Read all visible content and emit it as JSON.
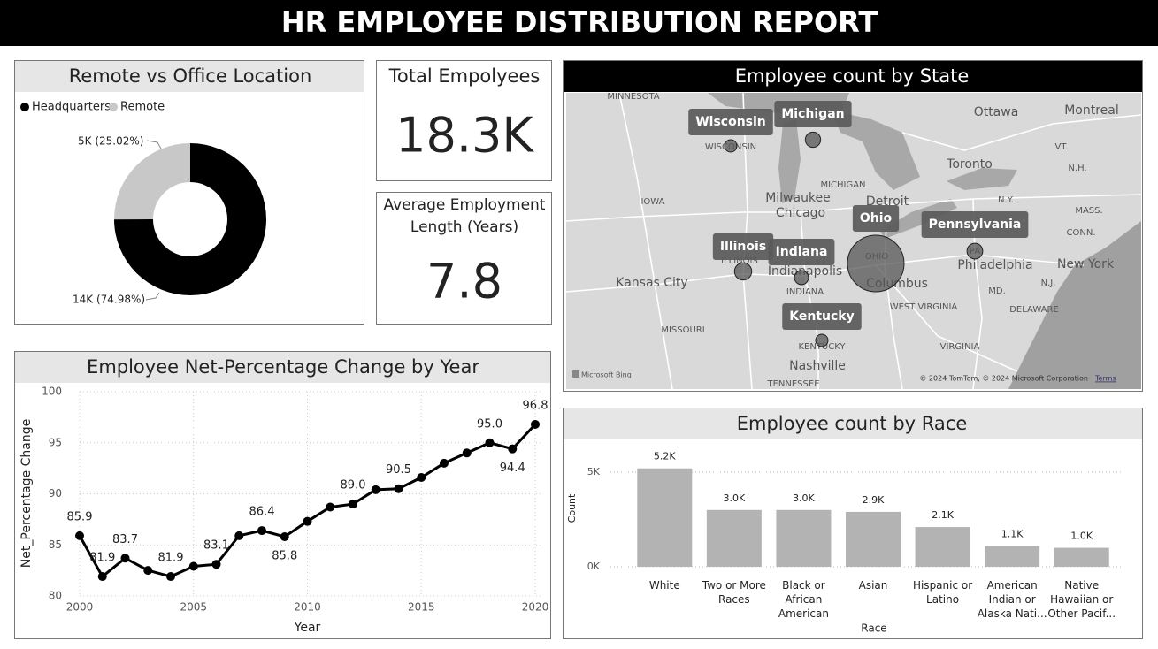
{
  "header": {
    "title": "HR EMPLOYEE DISTRIBUTION REPORT"
  },
  "cards": [
    {
      "title": "Total Empolyees",
      "value": "18.3K"
    },
    {
      "title": "Average Employment Length (Years)",
      "value": "7.8"
    }
  ],
  "chart_data": [
    {
      "type": "donut",
      "title": "Remote vs Office Location",
      "categories": [
        "Headquarters",
        "Remote"
      ],
      "values": [
        74.98,
        25.02
      ],
      "value_labels": [
        "14K (74.98%)",
        "5K (25.02%)"
      ],
      "colors": [
        "#000000",
        "#c8c8c8"
      ]
    },
    {
      "type": "line",
      "title": "Employee Net-Percentage Change by Year",
      "x_label": "Year",
      "y_label": "Net_Percentage Change",
      "x": [
        2000,
        2001,
        2002,
        2003,
        2004,
        2005,
        2006,
        2007,
        2008,
        2009,
        2010,
        2011,
        2012,
        2013,
        2014,
        2015,
        2016,
        2017,
        2018,
        2019,
        2020
      ],
      "values": [
        85.9,
        81.9,
        83.7,
        82.5,
        81.9,
        82.9,
        83.1,
        85.9,
        86.4,
        85.8,
        87.3,
        88.7,
        89.0,
        90.4,
        90.5,
        91.6,
        93.0,
        94.0,
        95.0,
        94.4,
        96.8
      ],
      "value_labels": [
        "85.9",
        "81.9",
        "83.7",
        null,
        "81.9",
        null,
        "83.1",
        null,
        "86.4",
        "85.8",
        null,
        null,
        "89.0",
        null,
        "90.5",
        null,
        null,
        null,
        "95.0",
        "94.4",
        "96.8"
      ],
      "color": "#000000",
      "xlim": [
        2000,
        2020
      ],
      "xticks": [
        2000,
        2005,
        2010,
        2015,
        2020
      ],
      "ylim": [
        80,
        100
      ],
      "yticks": [
        80,
        85,
        90,
        95,
        100
      ],
      "grid": true
    },
    {
      "type": "bar",
      "title": "Employee count by Race",
      "x_label": "Race",
      "y_label": "Count",
      "categories": [
        "White",
        "Two or More Races",
        "Black or African American",
        "Asian",
        "Hispanic or Latino",
        "American Indian or Alaska Nati...",
        "Native Hawaiian or Other Pacif..."
      ],
      "values": [
        5200,
        3000,
        3000,
        2900,
        2100,
        1100,
        1000
      ],
      "value_labels": [
        "5.2K",
        "3.0K",
        "3.0K",
        "2.9K",
        "2.1K",
        "1.1K",
        "1.0K"
      ],
      "color": "#b3b3b3",
      "ylim": [
        0,
        6000
      ],
      "yticks": [
        {
          "value": 0,
          "label": "0K"
        },
        {
          "value": 5000,
          "label": "5K"
        }
      ],
      "grid": true
    },
    {
      "type": "bubble-map",
      "title": "Employee count by State",
      "categories": [
        "Wisconsin",
        "Michigan",
        "Ohio",
        "Pennsylvania",
        "Illinois",
        "Indiana",
        "Kentucky"
      ],
      "values": [
        620,
        950,
        13000,
        1000,
        1200,
        800,
        620
      ],
      "color": "#555555",
      "place_labels": [
        "MINNESOTA",
        "WISCONSIN",
        "MICHIGAN",
        "Ottawa",
        "Montreal",
        "Toronto",
        "Milwaukee",
        "Chicago",
        "Detroit",
        "IOWA",
        "ILLINOIS",
        "Indianapolis",
        "INDIANA",
        "OHIO",
        "Columbus",
        "Kansas City",
        "MISSOURI",
        "WEST VIRGINIA",
        "Philadelphia",
        "New York",
        "PA",
        "KENTUCKY",
        "Nashville",
        "VIRGINIA",
        "TENNESSEE",
        "DELAWARE",
        "MD.",
        "N.J.",
        "N.Y.",
        "VT.",
        "N.H.",
        "MASS.",
        "CONN."
      ],
      "attribution": "© 2024 TomTom, © 2024 Microsoft Corporation",
      "terms": "Terms",
      "logo": "Microsoft Bing"
    }
  ]
}
